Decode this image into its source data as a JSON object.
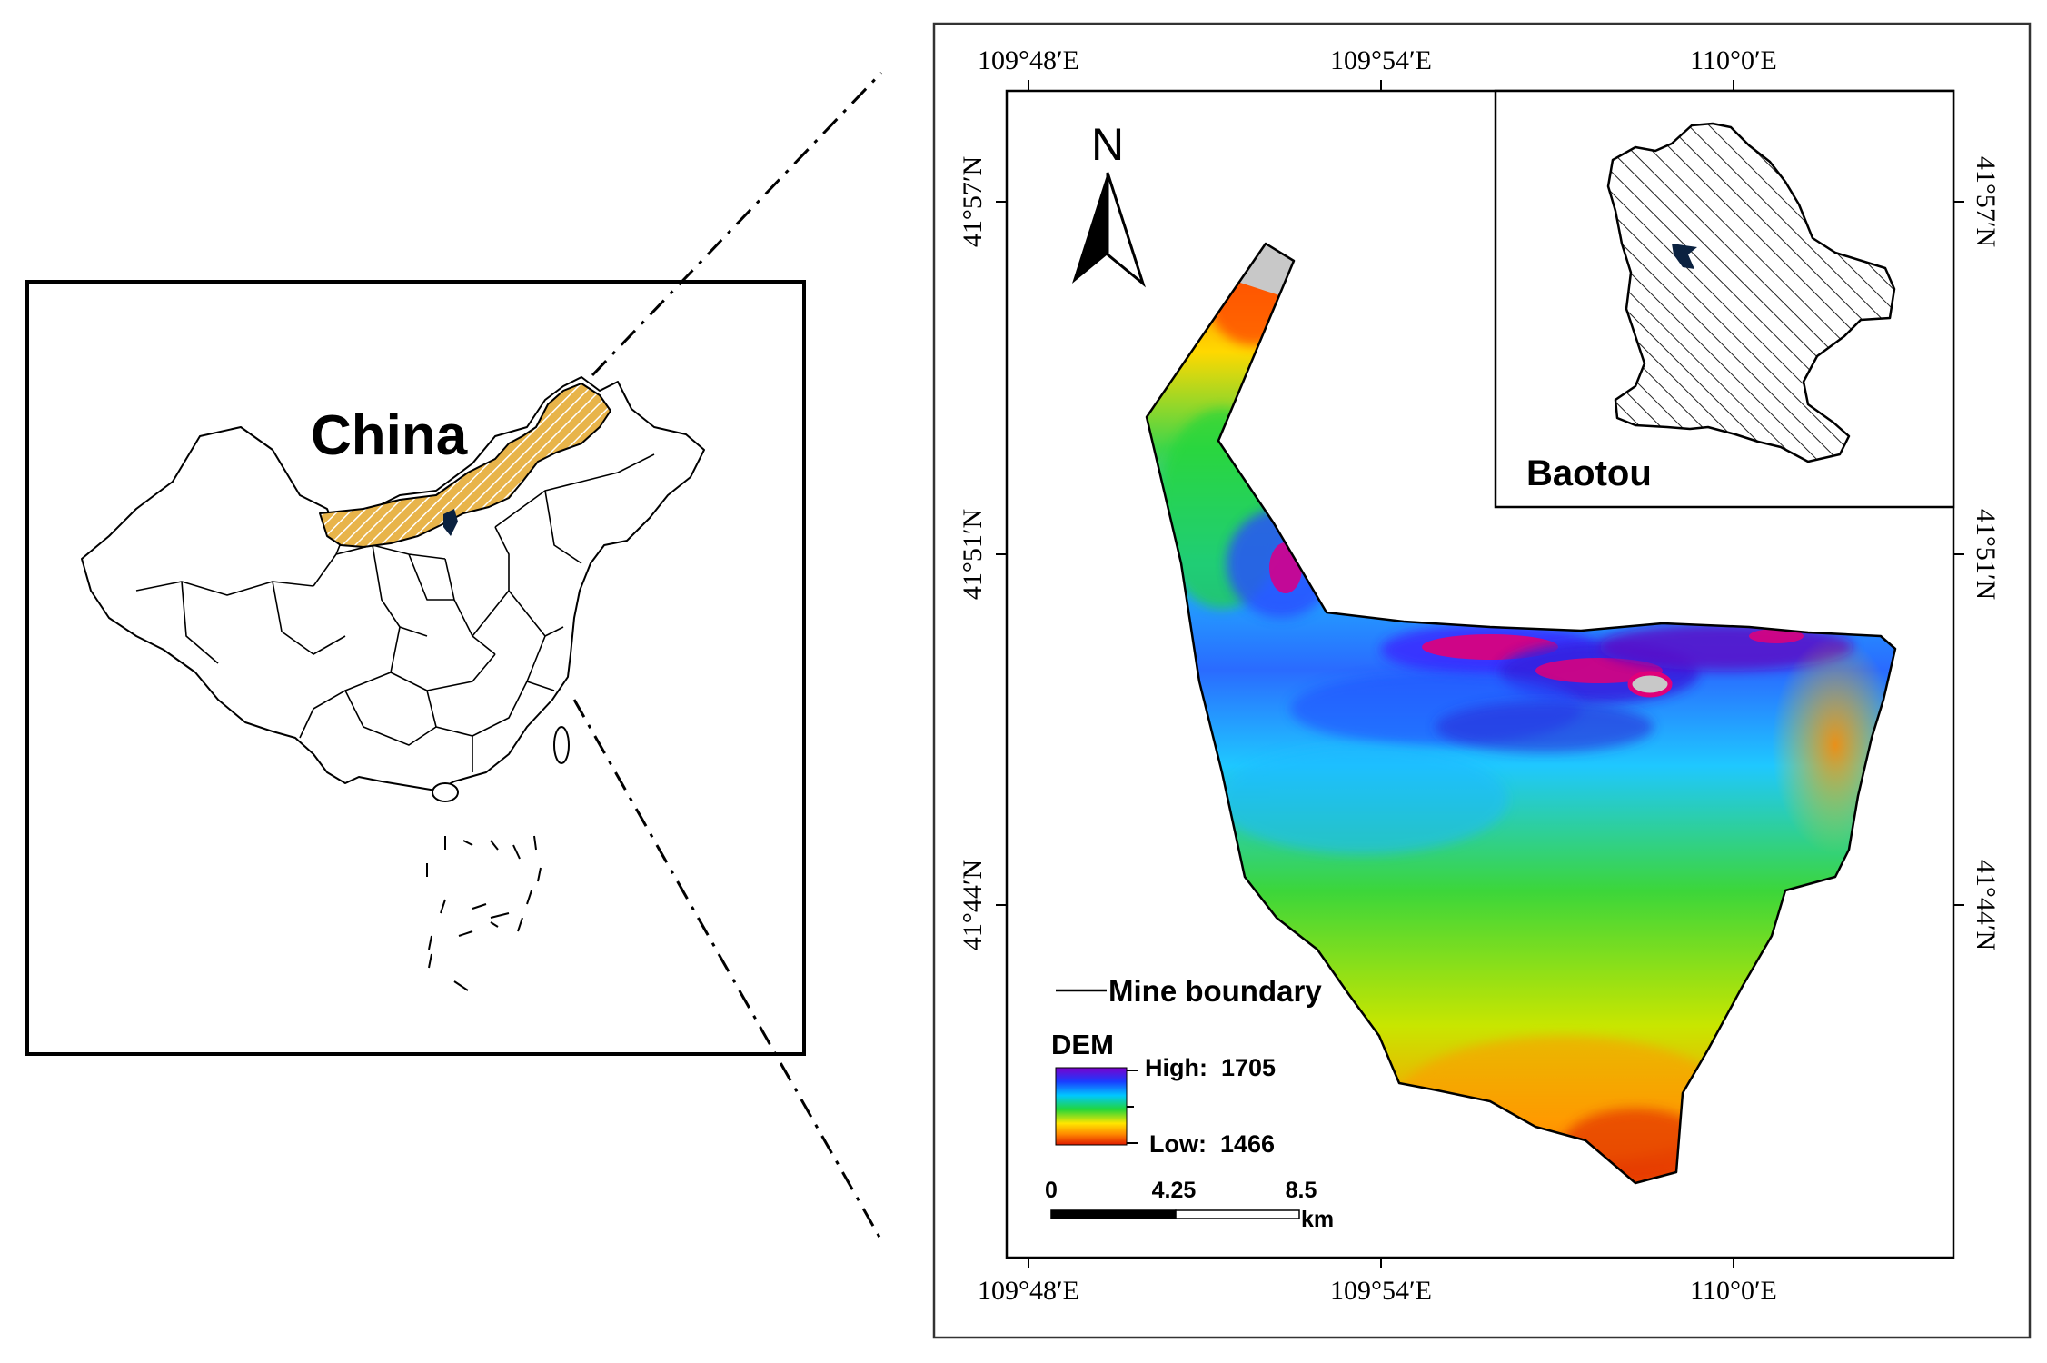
{
  "china_panel": {
    "label": "China"
  },
  "main_map": {
    "lon_ticks": [
      "109°48′E",
      "109°54′E",
      "110°0′E"
    ],
    "lat_ticks": [
      "41°57′N",
      "41°51′N",
      "41°44′N"
    ],
    "north_arrow": "N"
  },
  "inset": {
    "label": "Baotou"
  },
  "legend": {
    "boundary_label": "Mine boundary",
    "dem_title": "DEM",
    "high_label": "High:  1705",
    "low_label": "Low:  1466",
    "dem_colors": [
      "#7a00cc",
      "#1a3cff",
      "#00c8ff",
      "#22d63a",
      "#ffe600",
      "#ff8a00",
      "#e01a00"
    ]
  },
  "scale_bar": {
    "ticks": [
      "0",
      "4.25",
      "8.5"
    ],
    "unit": "km"
  },
  "colors": {
    "province_highlight": "#e8b44a",
    "mine_marker": "#0b2240"
  }
}
